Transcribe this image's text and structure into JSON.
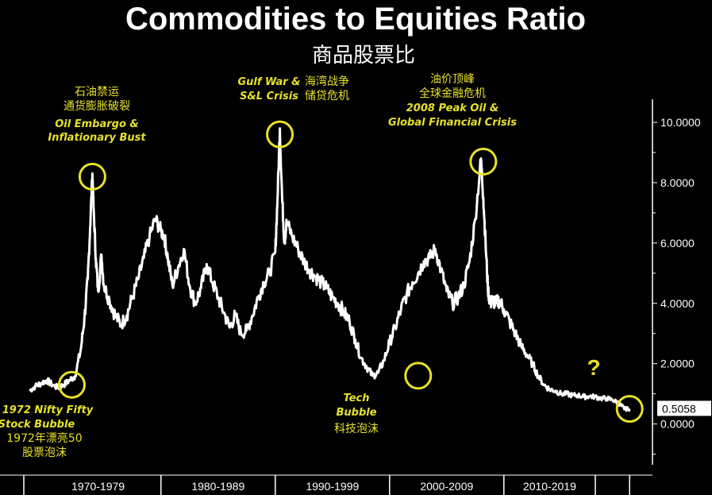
{
  "chart_data": {
    "type": "line",
    "title": "Commodities to Equities Ratio",
    "subtitle": "商品股票比",
    "ylim": [
      -1.3,
      10.5
    ],
    "ytick_labels": [
      "10.0000",
      "8.0000",
      "6.0000",
      "4.0000",
      "2.0000",
      "0.0000"
    ],
    "ytick_values": [
      10,
      8,
      6,
      4,
      2,
      0
    ],
    "x_range": [
      1968,
      2023
    ],
    "decade_dividers": [
      1968,
      1980,
      1990,
      2000,
      2010,
      2018,
      2021
    ],
    "xtick_labels": [
      "1970-1979",
      "1980-1989",
      "1990-1999",
      "2000-2009",
      "2010-2019"
    ],
    "last_value": 0.5058,
    "last_value_label": "0.5058",
    "line_color": "#ffffff",
    "highlight_color": "#e8e12a",
    "series": [
      {
        "x": [
          1968.5,
          1969,
          1969.5,
          1970,
          1970.5,
          1971,
          1971.5,
          1972,
          1972.5,
          1973,
          1973.3,
          1973.6,
          1973.8,
          1974,
          1974.1,
          1974.3,
          1974.5,
          1974.8,
          1975,
          1975.5,
          1976,
          1976.5,
          1977,
          1977.5,
          1978,
          1978.5,
          1979,
          1979.5,
          1980,
          1980.3,
          1980.6,
          1981,
          1981.5,
          1982,
          1982.5,
          1983,
          1983.5,
          1984,
          1984.5,
          1985,
          1985.5,
          1986,
          1986.5,
          1987,
          1987.5,
          1988,
          1988.5,
          1989,
          1989.5,
          1990,
          1990.2,
          1990.4,
          1990.6,
          1990.8,
          1991,
          1991.5,
          1992,
          1992.5,
          1993,
          1993.5,
          1994,
          1994.5,
          1995,
          1995.5,
          1996,
          1996.5,
          1997,
          1997.5,
          1998,
          1998.5,
          1999,
          1999.5,
          2000,
          2000.5,
          2001,
          2001.5,
          2002,
          2002.5,
          2003,
          2003.5,
          2004,
          2004.5,
          2005,
          2005.5,
          2006,
          2006.5,
          2007,
          2007.5,
          2008,
          2008.2,
          2008.4,
          2008.6,
          2008.8,
          2009,
          2009.3,
          2009.6,
          2010,
          2010.5,
          2011,
          2011.5,
          2012,
          2012.5,
          2013,
          2013.5,
          2014,
          2014.5,
          2015,
          2015.5,
          2016,
          2016.5,
          2017,
          2017.5,
          2018,
          2018.5,
          2019,
          2019.5,
          2020,
          2020.3,
          2020.6,
          2021
        ],
        "y": [
          1.1,
          1.25,
          1.35,
          1.45,
          1.3,
          1.2,
          1.3,
          1.45,
          1.6,
          2.5,
          3.5,
          4.8,
          6.5,
          8.3,
          7.2,
          5.5,
          4.4,
          5.6,
          4.6,
          4.1,
          3.6,
          3.3,
          3.6,
          4.2,
          4.8,
          5.5,
          6.2,
          6.8,
          6.4,
          6.2,
          5.5,
          4.6,
          5.2,
          5.8,
          4.6,
          4.0,
          4.5,
          5.3,
          4.7,
          4.2,
          3.7,
          3.2,
          3.6,
          3.0,
          3.1,
          3.6,
          4.2,
          4.7,
          5.0,
          5.7,
          7.5,
          9.8,
          7.5,
          6.0,
          6.7,
          6.2,
          5.8,
          5.4,
          5.1,
          4.9,
          4.7,
          4.5,
          4.2,
          4.0,
          3.7,
          3.4,
          2.8,
          2.2,
          1.9,
          1.6,
          1.7,
          2.1,
          2.7,
          3.2,
          3.8,
          4.3,
          4.7,
          5.0,
          5.4,
          5.5,
          5.8,
          5.1,
          4.4,
          4.0,
          4.2,
          4.6,
          5.4,
          6.8,
          8.8,
          7.5,
          6.0,
          4.5,
          4.0,
          4.1,
          4.0,
          4.1,
          3.8,
          3.4,
          3.0,
          2.6,
          2.3,
          2.0,
          1.6,
          1.3,
          1.15,
          1.1,
          1.0,
          1.0,
          0.95,
          0.95,
          0.9,
          0.92,
          0.9,
          0.85,
          0.85,
          0.8,
          0.7,
          0.6,
          0.5,
          0.5058
        ]
      }
    ]
  },
  "annotations": {
    "a1972": {
      "line1": "1972 Nifty Fifty",
      "line2": "Stock Bubble",
      "cn1": "1972年漂亮50",
      "cn2": "股票泡沫"
    },
    "a1974": {
      "cn1": "石油禁运",
      "cn2": "通货膨胀破裂",
      "line1": "Oil Embargo &",
      "line2": "Inflationary Bust"
    },
    "a1990": {
      "line1": "Gulf War &",
      "line2": "S&L Crisis",
      "cn1": "海湾战争",
      "cn2": "储贷危机"
    },
    "a2002": {
      "line1": "Tech",
      "line2": "Bubble",
      "cn1": "科技泡沫"
    },
    "a2008": {
      "cn1": "油价顶峰",
      "cn2": "全球金融危机",
      "line1": "2008 Peak Oil &",
      "line2": "Global Financial Crisis"
    },
    "question": "?"
  },
  "highlights": [
    {
      "x": 1972.2,
      "y": 1.3
    },
    {
      "x": 1974.0,
      "y": 8.2
    },
    {
      "x": 1990.4,
      "y": 9.6
    },
    {
      "x": 2002.5,
      "y": 1.6
    },
    {
      "x": 2008.2,
      "y": 8.7
    },
    {
      "x": 2021.0,
      "y": 0.5
    }
  ]
}
